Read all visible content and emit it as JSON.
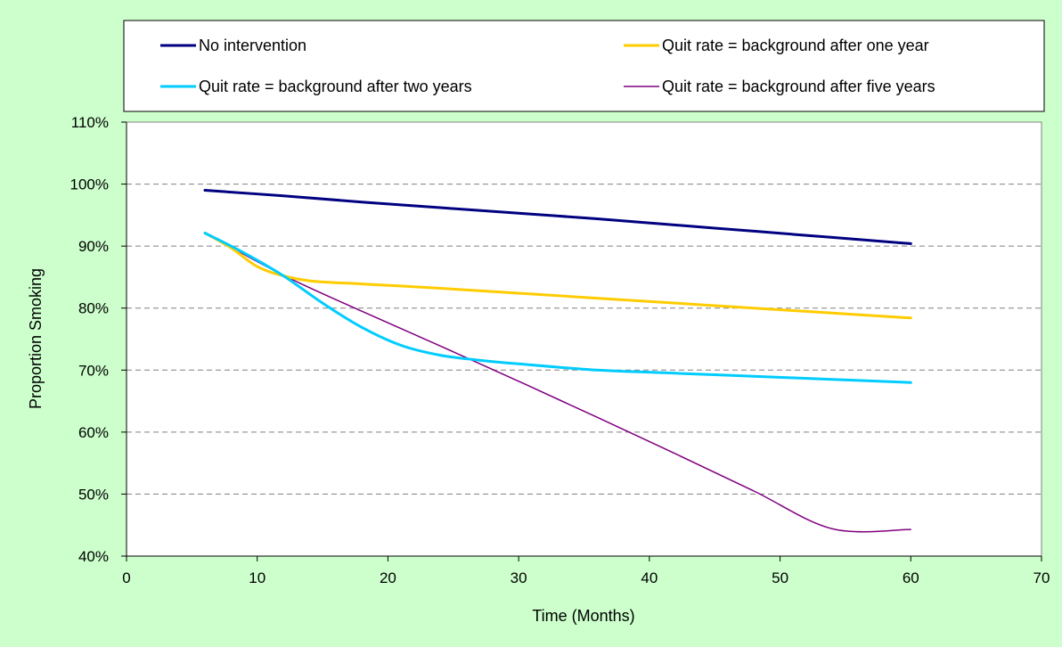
{
  "chart_data": {
    "type": "line",
    "title": "",
    "xlabel": "Time (Months)",
    "ylabel": "Proportion Smoking",
    "xlim": [
      0,
      70
    ],
    "ylim": [
      0.4,
      1.1
    ],
    "x_ticks": [
      0,
      10,
      20,
      30,
      40,
      50,
      60,
      70
    ],
    "y_ticks": [
      0.4,
      0.5,
      0.6,
      0.7,
      0.8,
      0.9,
      1.0,
      1.1
    ],
    "y_tick_labels": [
      "40%",
      "50%",
      "60%",
      "70%",
      "80%",
      "90%",
      "100%",
      "110%"
    ],
    "grid": "horizontal dashed",
    "legend_position": "top",
    "series": [
      {
        "name": "No intervention",
        "color": "#000080",
        "stroke": "thick",
        "x": [
          6,
          12,
          18,
          24,
          30,
          36,
          42,
          48,
          54,
          60
        ],
        "values": [
          0.99,
          0.981,
          0.971,
          0.962,
          0.953,
          0.944,
          0.934,
          0.924,
          0.914,
          0.904
        ]
      },
      {
        "name": "Quit rate = background after one year",
        "color": "#ffcc00",
        "stroke": "thick",
        "x": [
          6,
          8,
          10,
          12,
          14,
          16,
          18,
          24,
          30,
          36,
          42,
          48,
          54,
          60
        ],
        "values": [
          0.921,
          0.897,
          0.867,
          0.852,
          0.844,
          0.841,
          0.839,
          0.832,
          0.824,
          0.816,
          0.808,
          0.8,
          0.792,
          0.784
        ]
      },
      {
        "name": "Quit rate = background after two years",
        "color": "#00ccff",
        "stroke": "thick",
        "x": [
          6,
          9,
          12,
          15,
          18,
          21,
          24,
          27,
          30,
          36,
          42,
          48,
          54,
          60
        ],
        "values": [
          0.921,
          0.889,
          0.852,
          0.808,
          0.769,
          0.74,
          0.724,
          0.716,
          0.71,
          0.7,
          0.695,
          0.69,
          0.685,
          0.68
        ]
      },
      {
        "name": "Quit rate = background after five years",
        "color": "#800080",
        "stroke": "thin",
        "x": [
          6,
          12,
          18,
          24,
          30,
          36,
          42,
          48,
          54,
          60
        ],
        "values": [
          0.921,
          0.853,
          0.795,
          0.739,
          0.682,
          0.624,
          0.565,
          0.505,
          0.444,
          0.443
        ]
      }
    ]
  }
}
